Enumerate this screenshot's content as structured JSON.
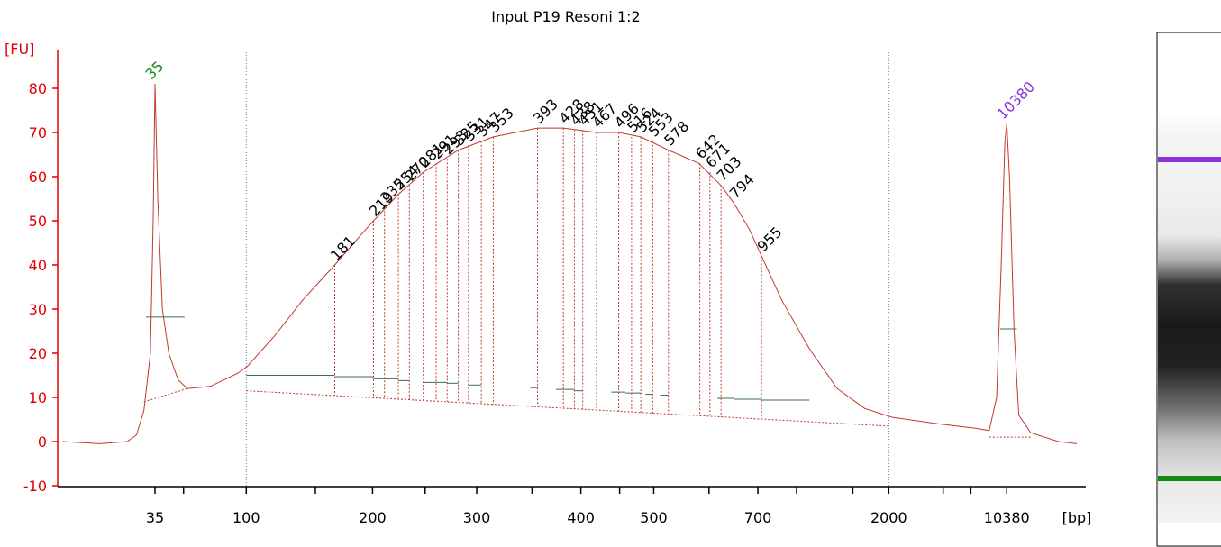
{
  "chart_data": {
    "type": "line",
    "title": "Input P19 Resoni 1:2",
    "ylabel": "[FU]",
    "xlabel": "[bp]",
    "ylim": [
      -10,
      90
    ],
    "yticks": [
      -10,
      0,
      10,
      20,
      30,
      40,
      50,
      60,
      70,
      80
    ],
    "x_ticks": [
      {
        "label": "35",
        "pos": 0.0
      },
      {
        "label": "100",
        "pos": 0.099
      },
      {
        "label": "200",
        "pos": 0.236
      },
      {
        "label": "300",
        "pos": 0.349
      },
      {
        "label": "400",
        "pos": 0.462
      },
      {
        "label": "500",
        "pos": 0.541
      },
      {
        "label": "700",
        "pos": 0.654
      },
      {
        "label": "2000",
        "pos": 0.796
      },
      {
        "label": "10380",
        "pos": 0.924
      }
    ],
    "x_minor_ticks": [
      0.031,
      0.174,
      0.293,
      0.409,
      0.504,
      0.601,
      0.696,
      0.757,
      0.855,
      0.885
    ],
    "marker_peaks": [
      {
        "label": "35",
        "pos": 0.0,
        "height": 81,
        "color": "#1a8a1a"
      },
      {
        "label": "10380",
        "pos": 0.924,
        "height": 72,
        "color": "#8833dd"
      }
    ],
    "fragment_peaks": [
      {
        "label": "181",
        "pos": 0.195,
        "height": 40
      },
      {
        "label": "219",
        "pos": 0.237,
        "height": 50
      },
      {
        "label": "235",
        "pos": 0.249,
        "height": 53
      },
      {
        "label": "254",
        "pos": 0.264,
        "height": 56
      },
      {
        "label": "270",
        "pos": 0.276,
        "height": 58
      },
      {
        "label": "281",
        "pos": 0.291,
        "height": 61
      },
      {
        "label": "291",
        "pos": 0.305,
        "height": 63
      },
      {
        "label": "293",
        "pos": 0.317,
        "height": 64
      },
      {
        "label": "325",
        "pos": 0.329,
        "height": 66
      },
      {
        "label": "331",
        "pos": 0.34,
        "height": 67
      },
      {
        "label": "347",
        "pos": 0.354,
        "height": 68
      },
      {
        "label": "353",
        "pos": 0.367,
        "height": 69
      },
      {
        "label": "393",
        "pos": 0.415,
        "height": 71
      },
      {
        "label": "428",
        "pos": 0.443,
        "height": 71
      },
      {
        "label": "438",
        "pos": 0.455,
        "height": 70.5
      },
      {
        "label": "451",
        "pos": 0.464,
        "height": 70.5
      },
      {
        "label": "467",
        "pos": 0.479,
        "height": 70
      },
      {
        "label": "496",
        "pos": 0.503,
        "height": 70
      },
      {
        "label": "516",
        "pos": 0.517,
        "height": 69
      },
      {
        "label": "524",
        "pos": 0.527,
        "height": 69
      },
      {
        "label": "553",
        "pos": 0.54,
        "height": 68
      },
      {
        "label": "578",
        "pos": 0.557,
        "height": 66
      },
      {
        "label": "642",
        "pos": 0.591,
        "height": 63
      },
      {
        "label": "671",
        "pos": 0.602,
        "height": 61
      },
      {
        "label": "703",
        "pos": 0.614,
        "height": 58
      },
      {
        "label": "794",
        "pos": 0.628,
        "height": 54
      },
      {
        "label": "955",
        "pos": 0.658,
        "height": 42
      }
    ],
    "boundary_markers": [
      0.099,
      0.796
    ],
    "series": [
      {
        "color": "#c0392b",
        "points": [
          [
            -0.1,
            0
          ],
          [
            -0.06,
            -0.5
          ],
          [
            -0.03,
            0
          ],
          [
            -0.02,
            1.5
          ],
          [
            -0.012,
            7
          ],
          [
            -0.005,
            20
          ],
          [
            -0.002,
            50
          ],
          [
            0.0,
            81
          ],
          [
            0.003,
            55
          ],
          [
            0.008,
            30
          ],
          [
            0.015,
            20
          ],
          [
            0.025,
            14
          ],
          [
            0.035,
            12
          ],
          [
            0.06,
            12.5
          ],
          [
            0.09,
            15.5
          ],
          [
            0.1,
            17
          ],
          [
            0.13,
            24
          ],
          [
            0.16,
            32
          ],
          [
            0.195,
            40
          ],
          [
            0.22,
            46
          ],
          [
            0.237,
            50
          ],
          [
            0.264,
            56
          ],
          [
            0.291,
            61
          ],
          [
            0.329,
            66
          ],
          [
            0.367,
            69
          ],
          [
            0.415,
            71
          ],
          [
            0.443,
            71
          ],
          [
            0.479,
            70
          ],
          [
            0.503,
            70
          ],
          [
            0.527,
            69
          ],
          [
            0.557,
            66
          ],
          [
            0.59,
            63
          ],
          [
            0.614,
            58
          ],
          [
            0.628,
            54
          ],
          [
            0.645,
            48
          ],
          [
            0.658,
            42
          ],
          [
            0.68,
            32
          ],
          [
            0.71,
            21
          ],
          [
            0.74,
            12
          ],
          [
            0.77,
            7.5
          ],
          [
            0.8,
            5.5
          ],
          [
            0.85,
            4
          ],
          [
            0.89,
            3
          ],
          [
            0.905,
            2.5
          ],
          [
            0.913,
            10
          ],
          [
            0.918,
            40
          ],
          [
            0.922,
            68
          ],
          [
            0.924,
            72
          ],
          [
            0.927,
            60
          ],
          [
            0.932,
            25
          ],
          [
            0.937,
            6
          ],
          [
            0.95,
            2
          ],
          [
            0.98,
            0
          ],
          [
            1.0,
            -0.5
          ]
        ]
      }
    ],
    "baseline_segments": [
      [
        0.0,
        28.2,
        0.032
      ],
      [
        0.099,
        15,
        0.195
      ],
      [
        0.195,
        14.7,
        0.237
      ],
      [
        0.237,
        14.2,
        0.264
      ],
      [
        0.264,
        13.8,
        0.276
      ],
      [
        0.291,
        13.4,
        0.317
      ],
      [
        0.317,
        13.2,
        0.329
      ],
      [
        0.34,
        12.8,
        0.354
      ],
      [
        0.407,
        12.2,
        0.415
      ],
      [
        0.435,
        11.8,
        0.455
      ],
      [
        0.455,
        11.5,
        0.464
      ],
      [
        0.495,
        11.2,
        0.51
      ],
      [
        0.51,
        11,
        0.527
      ],
      [
        0.532,
        10.7,
        0.54
      ],
      [
        0.548,
        10.5,
        0.557
      ],
      [
        0.588,
        10.1,
        0.602
      ],
      [
        0.61,
        9.8,
        0.628
      ],
      [
        0.628,
        9.6,
        0.658
      ],
      [
        0.658,
        9.4,
        0.71
      ],
      [
        0.917,
        25.5,
        0.935
      ]
    ]
  },
  "gel": {
    "upper_marker_color": "#8833dd",
    "lower_marker_color": "#138a13"
  }
}
